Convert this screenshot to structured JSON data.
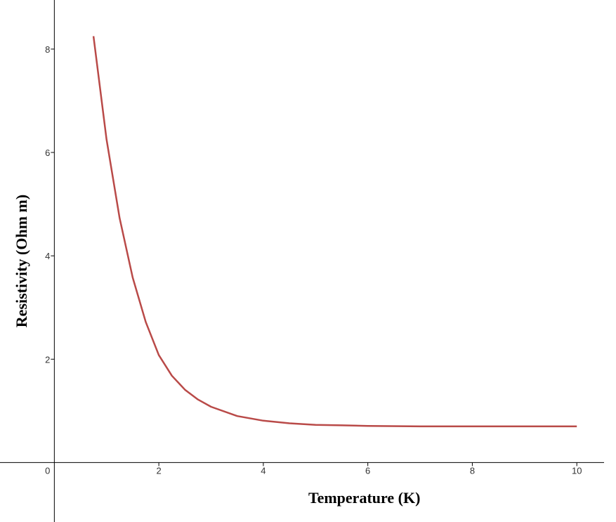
{
  "chart_data": {
    "type": "line",
    "title": "",
    "xlabel": "Temperature (K)",
    "ylabel": "Resistivity (Ohm m)",
    "xlim": [
      -1.04,
      10.75
    ],
    "ylim": [
      -1.15,
      8.95
    ],
    "x_ticks": [
      2,
      4,
      6,
      8,
      10
    ],
    "y_ticks": [
      2,
      4,
      6,
      8
    ],
    "origin_label": "0",
    "grid": false,
    "legend": "none",
    "series": [
      {
        "color": "#b94a48",
        "x": [
          0.75,
          1.0,
          1.25,
          1.5,
          1.75,
          2.0,
          2.25,
          2.5,
          2.75,
          3.0,
          3.5,
          4.0,
          4.5,
          5.0,
          5.5,
          6.0,
          7.0,
          8.0,
          9.0,
          10.0
        ],
        "y": [
          8.25,
          6.25,
          4.73,
          3.58,
          2.72,
          2.08,
          1.68,
          1.41,
          1.22,
          1.08,
          0.9,
          0.81,
          0.76,
          0.73,
          0.72,
          0.71,
          0.7,
          0.7,
          0.7,
          0.7
        ]
      }
    ]
  }
}
